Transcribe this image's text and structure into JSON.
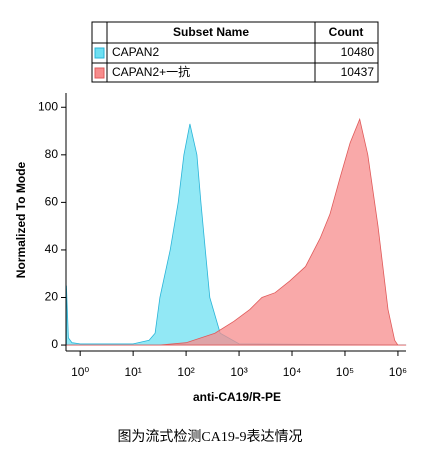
{
  "chart_data": {
    "type": "area",
    "legend_header": [
      "Subset Name",
      "Count"
    ],
    "series": [
      {
        "name": "CAPAN2",
        "count": 10480,
        "color": "#6ee0f2",
        "edge": "#2ab4d8",
        "x": [
          0.55,
          0.6,
          0.7,
          1,
          3,
          10,
          20,
          26,
          32,
          50,
          71,
          91,
          118,
          160,
          190,
          230,
          280,
          440,
          1000,
          1400000
        ],
        "values": [
          25,
          3,
          1,
          0.5,
          0.5,
          0.5,
          2,
          5,
          20,
          40,
          60,
          80,
          93,
          80,
          60,
          40,
          20,
          5,
          0.5,
          0
        ]
      },
      {
        "name": "CAPAN2+一抗",
        "count": 10437,
        "color": "#f78c8c",
        "edge": "#e05a5a",
        "x": [
          0.55,
          30,
          100,
          350,
          800,
          1600,
          2700,
          4800,
          9100,
          18000,
          34000,
          52000,
          80000,
          125000,
          190000,
          270000,
          420000,
          650000,
          870000,
          1000000,
          1400000
        ],
        "values": [
          0,
          0,
          1,
          5,
          10,
          15,
          20,
          22,
          27,
          33,
          45,
          55,
          70,
          85,
          95,
          80,
          50,
          15,
          2,
          0,
          0
        ]
      }
    ],
    "xlim": [
      0.54,
      1420000
    ],
    "log_x": true,
    "xticks": [
      {
        "value": 1,
        "label": "10⁰"
      },
      {
        "value": 10,
        "label": "10¹"
      },
      {
        "value": 100,
        "label": "10²"
      },
      {
        "value": 1000,
        "label": "10³"
      },
      {
        "value": 10000,
        "label": "10⁴"
      },
      {
        "value": 100000,
        "label": "10⁵"
      },
      {
        "value": 1000000,
        "label": "10⁶"
      }
    ],
    "ylim": [
      -2.5,
      106
    ],
    "yticks": [
      0,
      20,
      40,
      60,
      80,
      100
    ],
    "xlabel": "anti-CA19/R-PE",
    "ylabel": "Normalized To Mode"
  },
  "caption": "图为流式检测CA19-9表达情况"
}
